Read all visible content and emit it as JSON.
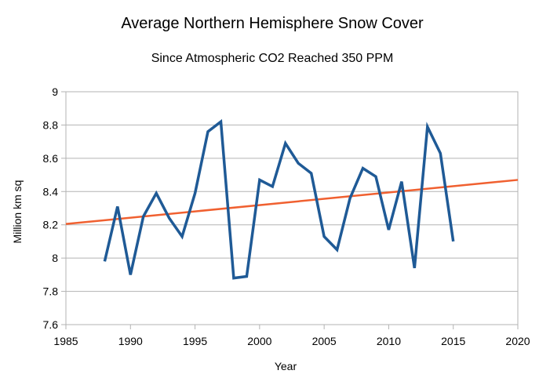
{
  "chart_data": {
    "type": "line",
    "title": "Average Northern Hemisphere Snow Cover",
    "subtitle": "Since Atmospheric CO2 Reached 350 PPM",
    "xlabel": "Year",
    "ylabel": "Million km sq",
    "xlim": [
      1985,
      2020
    ],
    "ylim": [
      7.6,
      9
    ],
    "x_ticks": [
      1985,
      1990,
      1995,
      2000,
      2005,
      2010,
      2015,
      2020
    ],
    "x_tick_labels": [
      "1985",
      "1990",
      "1995",
      "2000",
      "2005",
      "2010",
      "2015",
      "2020"
    ],
    "y_ticks": [
      7.6,
      7.8,
      8,
      8.2,
      8.4,
      8.6,
      8.8,
      9
    ],
    "y_tick_labels": [
      "7.6",
      "7.8",
      "8",
      "8.2",
      "8.4",
      "8.6",
      "8.8",
      "9"
    ],
    "grid": true,
    "legend": false,
    "series": [
      {
        "color": "#1f5a96",
        "x": [
          1988,
          1989,
          1990,
          1991,
          1992,
          1993,
          1994,
          1995,
          1996,
          1997,
          1998,
          1999,
          2000,
          2001,
          2002,
          2003,
          2004,
          2005,
          2006,
          2007,
          2008,
          2009,
          2010,
          2011,
          2012,
          2013,
          2014,
          2015
        ],
        "y": [
          7.98,
          8.31,
          7.9,
          8.25,
          8.39,
          8.24,
          8.13,
          8.39,
          8.76,
          8.82,
          7.88,
          7.89,
          8.47,
          8.43,
          8.69,
          8.57,
          8.51,
          8.13,
          8.05,
          8.36,
          8.54,
          8.49,
          8.17,
          8.46,
          7.94,
          8.79,
          8.63,
          8.1
        ]
      }
    ],
    "trendline": {
      "color": "#f06030",
      "x": [
        1985,
        2020
      ],
      "y": [
        8.205,
        8.47
      ]
    }
  }
}
